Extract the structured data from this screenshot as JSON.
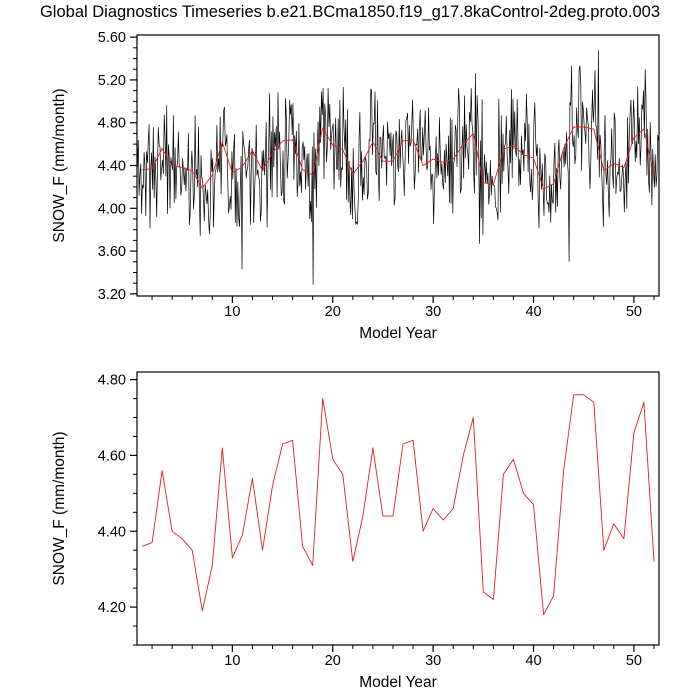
{
  "title": "Global Diagnostics Timeseries b.e21.BCma1850.f19_g17.8kaControl-2deg.proto.003",
  "chart_data": [
    {
      "type": "line",
      "panel": "top",
      "xlabel": "Model Year",
      "ylabel": "SNOW_F (mm/month)",
      "xlim": [
        0.5,
        52.5
      ],
      "ylim": [
        3.18,
        5.62
      ],
      "xticks": [
        10,
        20,
        30,
        40,
        50
      ],
      "x_minor_step": 2,
      "yticks": [
        "3.20",
        "3.60",
        "4.00",
        "4.40",
        "4.80",
        "5.20",
        "5.60"
      ],
      "y_minor_step": 0.1,
      "grid": false,
      "legend": "none",
      "series": [
        {
          "name": "monthly SNOW_F",
          "color": "#000000",
          "line_width": 0.7,
          "synthesized": true,
          "note": "dense monthly trace spanning roughly 3.2 to 5.55 mm/month; individual values not resolvable, regenerated as annual mean plus noise",
          "points_per_year": 12,
          "noise_amplitude": 0.62,
          "spike_chance": 0.055,
          "seed": 11,
          "clamp": [
            3.22,
            5.56
          ]
        },
        {
          "name": "annual mean SNOW_F",
          "color": "#dd1f1f",
          "line_width": 0.9,
          "values": [
            4.36,
            4.37,
            4.56,
            4.4,
            4.38,
            4.35,
            4.19,
            4.31,
            4.62,
            4.33,
            4.39,
            4.54,
            4.35,
            4.52,
            4.63,
            4.64,
            4.36,
            4.31,
            4.75,
            4.59,
            4.55,
            4.32,
            4.44,
            4.62,
            4.44,
            4.44,
            4.63,
            4.64,
            4.4,
            4.46,
            4.43,
            4.46,
            4.6,
            4.7,
            4.24,
            4.22,
            4.55,
            4.59,
            4.5,
            4.47,
            4.18,
            4.23,
            4.56,
            4.76,
            4.76,
            4.74,
            4.35,
            4.42,
            4.38,
            4.66,
            4.74,
            4.32
          ]
        }
      ]
    },
    {
      "type": "line",
      "panel": "bottom",
      "xlabel": "Model Year",
      "ylabel": "SNOW_F (mm/month)",
      "xlim": [
        0.5,
        52.5
      ],
      "ylim": [
        4.1,
        4.82
      ],
      "xticks": [
        10,
        20,
        30,
        40,
        50
      ],
      "x_minor_step": 2,
      "yticks": [
        "4.20",
        "4.40",
        "4.60",
        "4.80"
      ],
      "y_minor_step": 0.05,
      "grid": false,
      "legend": "none",
      "series": [
        {
          "name": "annual mean SNOW_F",
          "color": "#dd1f1f",
          "line_width": 0.9,
          "values": [
            4.36,
            4.37,
            4.56,
            4.4,
            4.38,
            4.35,
            4.19,
            4.31,
            4.62,
            4.33,
            4.39,
            4.54,
            4.35,
            4.52,
            4.63,
            4.64,
            4.36,
            4.31,
            4.75,
            4.59,
            4.55,
            4.32,
            4.44,
            4.62,
            4.44,
            4.44,
            4.63,
            4.64,
            4.4,
            4.46,
            4.43,
            4.46,
            4.6,
            4.7,
            4.24,
            4.22,
            4.55,
            4.59,
            4.5,
            4.47,
            4.18,
            4.23,
            4.56,
            4.76,
            4.76,
            4.74,
            4.35,
            4.42,
            4.38,
            4.66,
            4.74,
            4.32
          ]
        }
      ]
    }
  ]
}
